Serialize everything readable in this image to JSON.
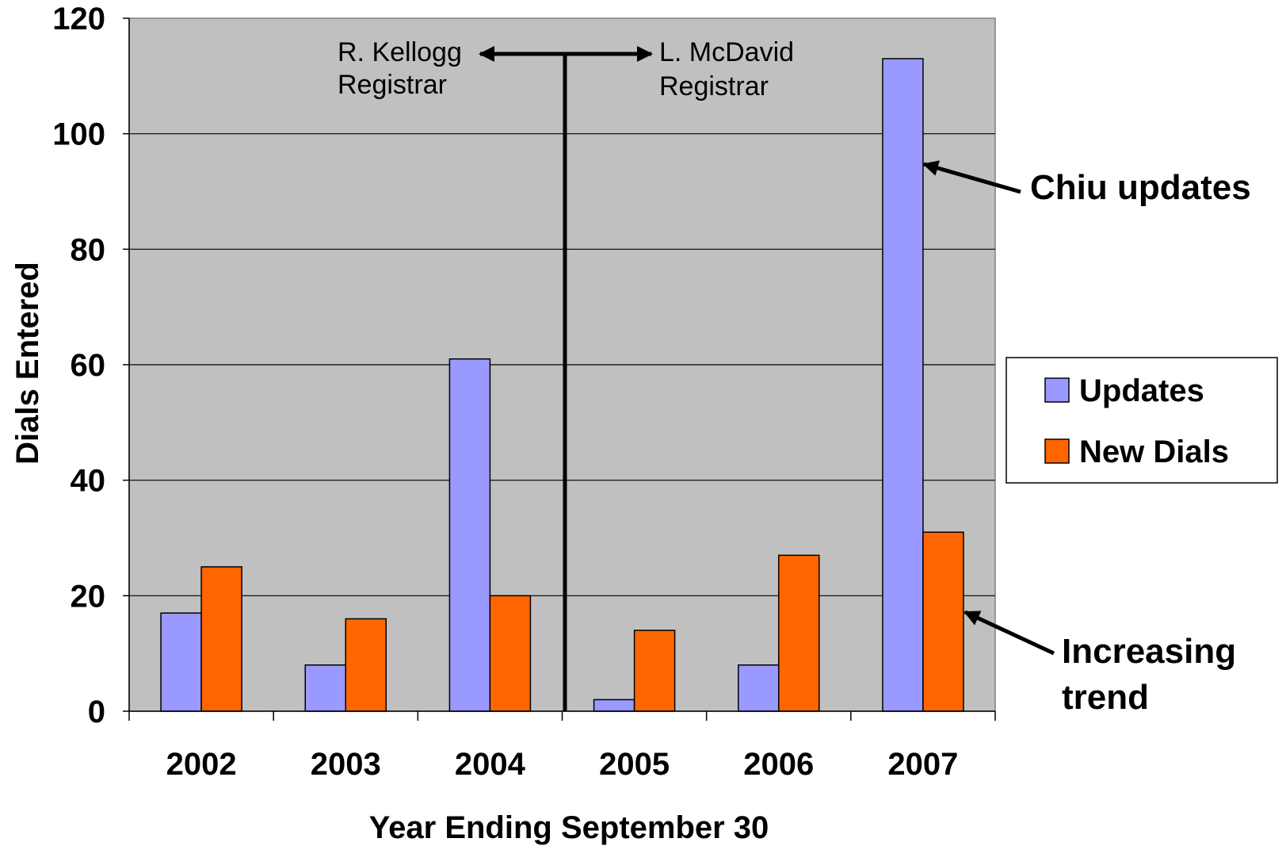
{
  "chart_data": {
    "type": "bar",
    "categories": [
      "2002",
      "2003",
      "2004",
      "2005",
      "2006",
      "2007"
    ],
    "series": [
      {
        "name": "Updates",
        "color": "#9999ff",
        "values": [
          17,
          8,
          61,
          2,
          8,
          113
        ]
      },
      {
        "name": "New Dials",
        "color": "#ff6600",
        "values": [
          25,
          16,
          20,
          14,
          27,
          31
        ]
      }
    ],
    "xlabel": "Year Ending September 30",
    "ylabel": "Dials Entered",
    "ylim": [
      0,
      120
    ],
    "yticks": [
      0,
      20,
      40,
      60,
      80,
      100,
      120
    ],
    "grid": true,
    "plot_background": "#c0c0c0",
    "legend_position": "right",
    "annotations": {
      "left_registrar": {
        "name": "R. Kellogg",
        "role": "Registrar"
      },
      "right_registrar": {
        "name": "L. McDavid",
        "role": "Registrar"
      },
      "callout_top": "Chiu updates",
      "callout_bottom_line1": "Increasing",
      "callout_bottom_line2": "trend"
    }
  }
}
